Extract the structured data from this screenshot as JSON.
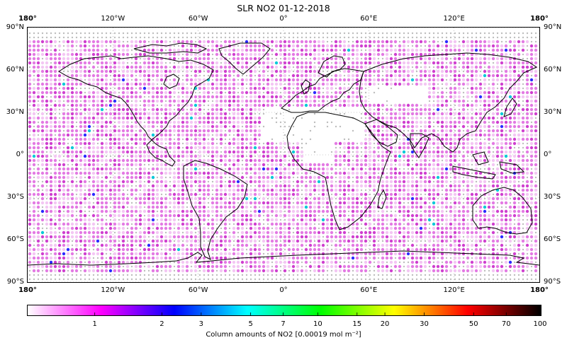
{
  "title": "SLR NO2 01-12-2018",
  "map": {
    "projection": "equirectangular",
    "lon_range": [
      -180,
      180
    ],
    "lat_range": [
      -90,
      90
    ],
    "gridlines": "dotted",
    "coastlines": true,
    "lon_ticks": [
      {
        "value": -180,
        "label": "180°"
      },
      {
        "value": -120,
        "label": "120°W"
      },
      {
        "value": -60,
        "label": "60°W"
      },
      {
        "value": 0,
        "label": "0°"
      },
      {
        "value": 60,
        "label": "60°E"
      },
      {
        "value": 120,
        "label": "120°E"
      },
      {
        "value": 180,
        "label": "180°"
      }
    ],
    "lat_ticks": [
      {
        "value": 90,
        "label": "90°N"
      },
      {
        "value": 60,
        "label": "60°N"
      },
      {
        "value": 30,
        "label": "30°N"
      },
      {
        "value": 0,
        "label": "0°"
      },
      {
        "value": -30,
        "label": "30°S"
      },
      {
        "value": -60,
        "label": "60°S"
      },
      {
        "value": -90,
        "label": "90°S"
      }
    ],
    "point_colors": {
      "no_data": "#bdbdbd",
      "low": "#f3c6f3",
      "mid": "#e37ae3",
      "high": "#cf3fcf",
      "outlier_blue": "#2a2aff",
      "outlier_cyan": "#00c8d8"
    }
  },
  "colorbar": {
    "caption": "Column amounts of NO2 [0.00019 mol m⁻²]",
    "scale": "log",
    "range": [
      0.5,
      100
    ],
    "stops": [
      "#ffffff",
      "#ff00ff",
      "#0000ff",
      "#00ffff",
      "#00ff00",
      "#ffff00",
      "#ff0000",
      "#000000"
    ],
    "labels": [
      "1",
      "2",
      "3",
      "5",
      "7",
      "10",
      "15",
      "20",
      "30",
      "50",
      "70",
      "100"
    ]
  }
}
